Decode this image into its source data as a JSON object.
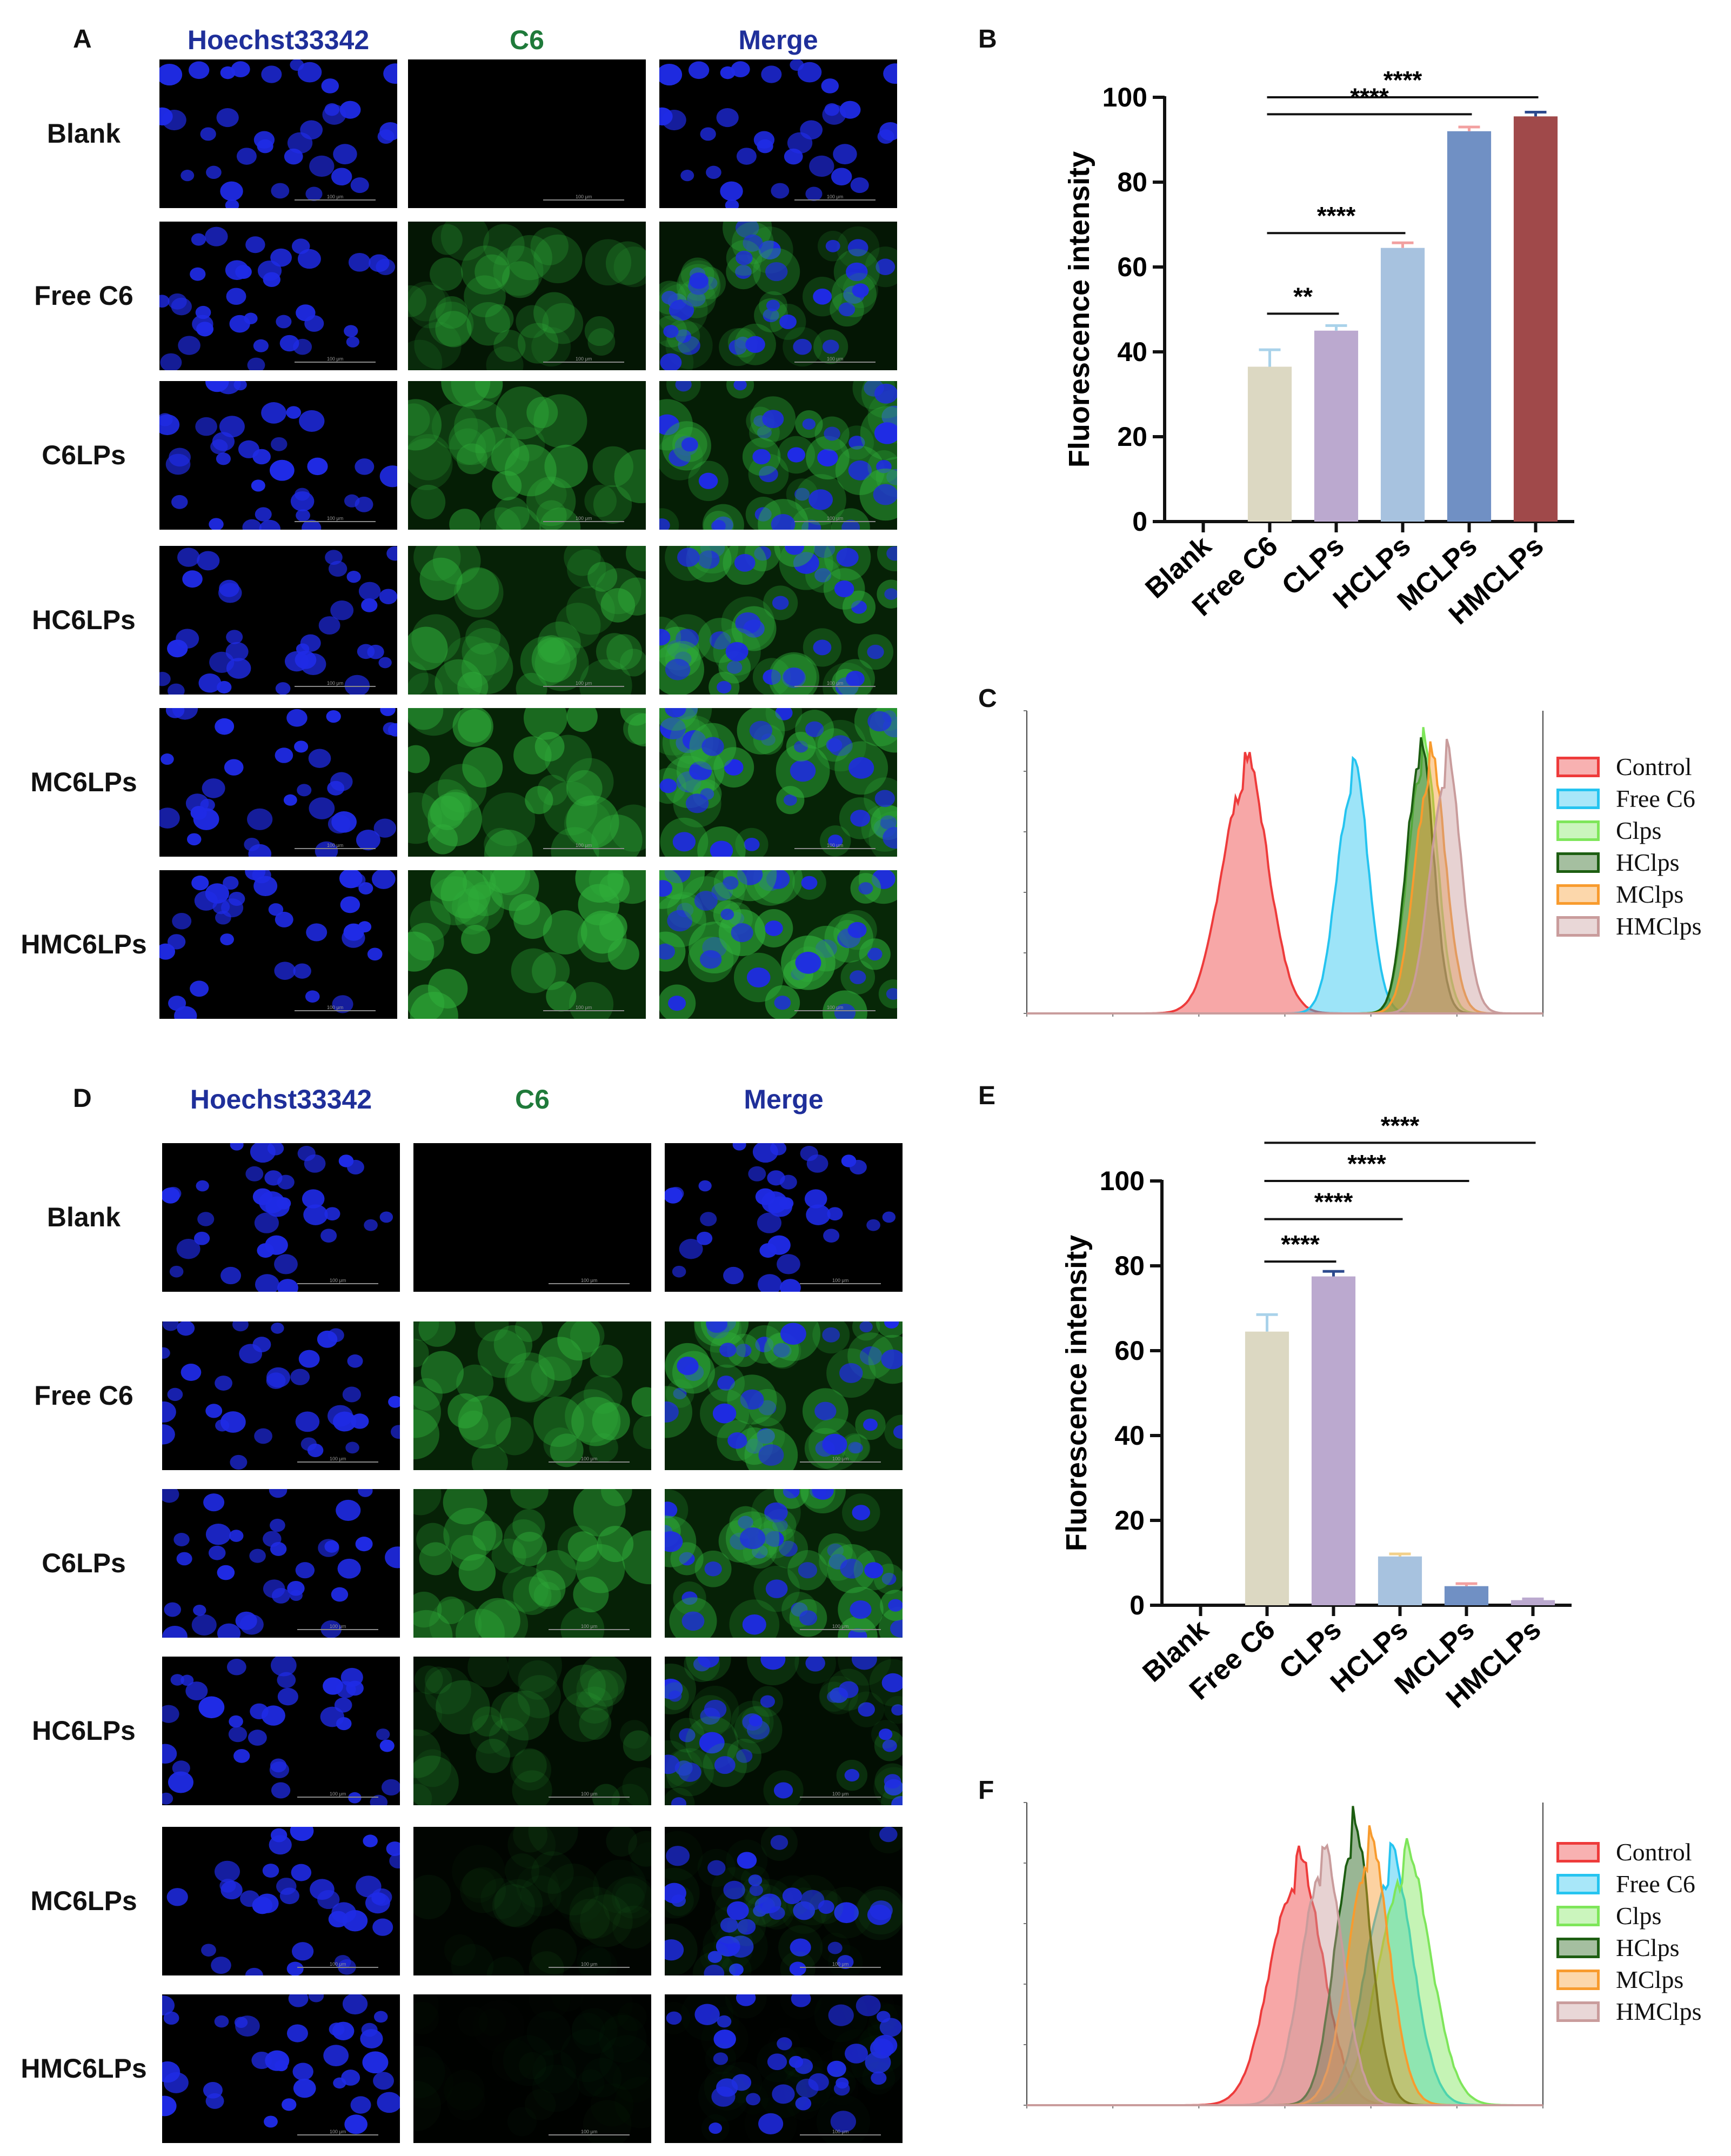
{
  "panels": {
    "A": "A",
    "B": "B",
    "C": "C",
    "D": "D",
    "E": "E",
    "F": "F"
  },
  "micrograph_columns": [
    "Hoechst33342",
    "C6",
    "Merge"
  ],
  "column_colors": [
    "#1f2f9a",
    "#1f7a3a",
    "#1f2f9a"
  ],
  "micrograph_rows": [
    "Blank",
    "Free C6",
    "C6LPs",
    "HC6LPs",
    "MC6LPs",
    "HMC6LPs"
  ],
  "scale_bar_label": "100 μm",
  "legend_labels": [
    "Control",
    "Free C6",
    "Clps",
    "HClps",
    "MClps",
    "HMClps"
  ],
  "legend_colors": [
    "#ee3b3b",
    "#25c4f0",
    "#7ee65a",
    "#1d5e12",
    "#f89b2e",
    "#c99c9c"
  ],
  "chart_data": [
    {
      "panel": "B",
      "type": "bar",
      "ylabel": "Fluorescence intensity",
      "ylim": [
        0,
        100
      ],
      "yticks": [
        0,
        20,
        40,
        60,
        80,
        100
      ],
      "categories": [
        "Blank",
        "Free C6",
        "CLPs",
        "HCLPs",
        "MCLPs",
        "HMCLPs"
      ],
      "values": [
        0,
        36.5,
        45,
        64.5,
        92,
        95.5
      ],
      "errors": [
        0,
        4,
        1.2,
        1.2,
        1,
        1
      ],
      "bar_colors": [
        "#dcd8c2",
        "#dcd8c2",
        "#bba9cf",
        "#a7c2df",
        "#7090c4",
        "#a0494a"
      ],
      "error_colors": [
        "#dcd8c2",
        "#a9d2ea",
        "#a9d2ea",
        "#f2a0a0",
        "#f2a0a0",
        "#2d4a8e"
      ],
      "significance": [
        {
          "label": "****",
          "from": 1,
          "to": 5,
          "level": 100
        },
        {
          "label": "****",
          "from": 1,
          "to": 4,
          "level": 96
        },
        {
          "label": "****",
          "from": 1,
          "to": 3,
          "level": 68
        },
        {
          "label": "**",
          "from": 1,
          "to": 2,
          "level": 49
        }
      ]
    },
    {
      "panel": "C",
      "type": "area",
      "note": "flow cytometry histogram; peaks estimated relative to the tallest curve",
      "series": [
        {
          "name": "Control",
          "peak_position": 0.42,
          "spread": 0.045,
          "height": 0.9
        },
        {
          "name": "Free C6",
          "peak_position": 0.63,
          "spread": 0.03,
          "height": 0.9
        },
        {
          "name": "Clps",
          "peak_position": 0.765,
          "spread": 0.028,
          "height": 0.98
        },
        {
          "name": "HClps",
          "peak_position": 0.76,
          "spread": 0.026,
          "height": 0.98
        },
        {
          "name": "MClps",
          "peak_position": 0.78,
          "spread": 0.03,
          "height": 0.92
        },
        {
          "name": "HMClps",
          "peak_position": 0.81,
          "spread": 0.03,
          "height": 0.92
        }
      ]
    },
    {
      "panel": "E",
      "type": "bar",
      "ylabel": "Fluorescence intensity",
      "ylim": [
        0,
        100
      ],
      "yticks": [
        0,
        20,
        40,
        60,
        80,
        100
      ],
      "categories": [
        "Blank",
        "Free C6",
        "CLPs",
        "HCLPs",
        "MCLPs",
        "HMCLPs"
      ],
      "values": [
        0,
        64.5,
        77.5,
        11.5,
        4.5,
        1.2
      ],
      "errors": [
        0,
        4,
        1.2,
        0.6,
        0.6,
        0.3
      ],
      "bar_colors": [
        "#dcd8c2",
        "#dcd8c2",
        "#bba9cf",
        "#a7c2df",
        "#7090c4",
        "#bba9cf"
      ],
      "error_colors": [
        "#dcd8c2",
        "#a9d2ea",
        "#2d4a8e",
        "#f2d08a",
        "#f2a0a0",
        "#bba9cf"
      ],
      "significance": [
        {
          "label": "****",
          "from": 1,
          "to": 5,
          "level": 109
        },
        {
          "label": "****",
          "from": 1,
          "to": 4,
          "level": 100
        },
        {
          "label": "****",
          "from": 1,
          "to": 3,
          "level": 91
        },
        {
          "label": "****",
          "from": 1,
          "to": 2,
          "level": 81
        }
      ]
    },
    {
      "panel": "F",
      "type": "area",
      "note": "flow cytometry histogram; peaks estimated relative to the tallest curve",
      "series": [
        {
          "name": "Control",
          "peak_position": 0.52,
          "spread": 0.05,
          "height": 0.88
        },
        {
          "name": "Free C6",
          "peak_position": 0.7,
          "spread": 0.045,
          "height": 0.9
        },
        {
          "name": "Clps",
          "peak_position": 0.73,
          "spread": 0.05,
          "height": 0.9
        },
        {
          "name": "HClps",
          "peak_position": 0.63,
          "spread": 0.035,
          "height": 1.0
        },
        {
          "name": "MClps",
          "peak_position": 0.66,
          "spread": 0.04,
          "height": 0.94
        },
        {
          "name": "HMClps",
          "peak_position": 0.57,
          "spread": 0.04,
          "height": 0.91
        }
      ]
    }
  ]
}
